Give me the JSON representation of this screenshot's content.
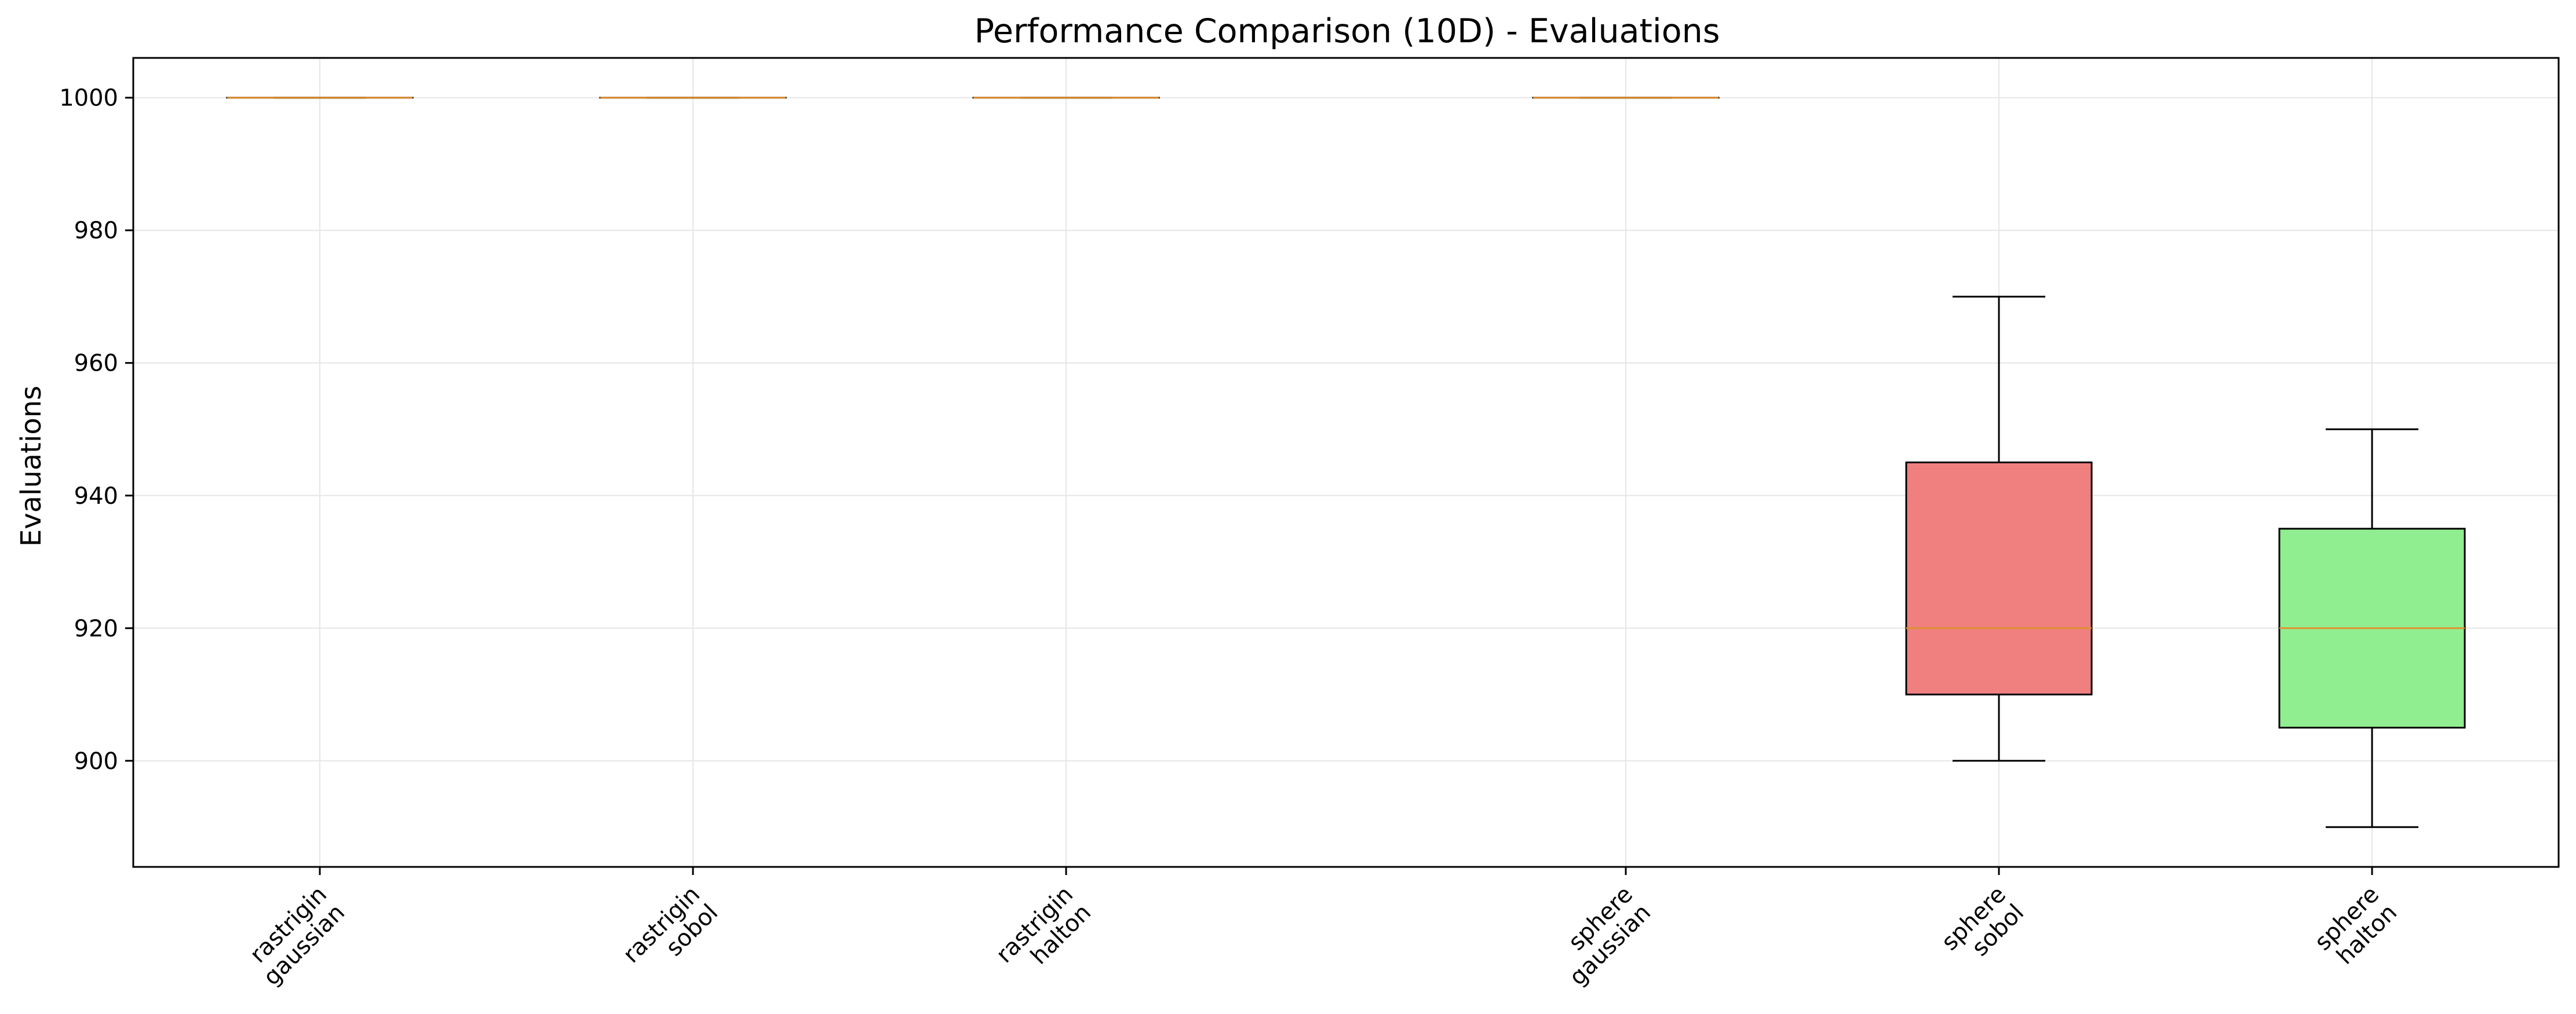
{
  "chart_data": {
    "type": "box",
    "title": "Performance Comparison (10D) - Evaluations",
    "xlabel": "",
    "ylabel": "Evaluations",
    "ylim": [
      884,
      1006
    ],
    "yticks": [
      900,
      920,
      940,
      960,
      980,
      1000
    ],
    "grid": true,
    "categories": [
      [
        "rastrigin",
        "gaussian"
      ],
      [
        "rastrigin",
        "sobol"
      ],
      [
        "rastrigin",
        "halton"
      ],
      [
        "sphere",
        "gaussian"
      ],
      [
        "sphere",
        "sobol"
      ],
      [
        "sphere",
        "halton"
      ]
    ],
    "x_positions": [
      1,
      2,
      3,
      4.5,
      5.5,
      6.5
    ],
    "xlim": [
      0.5,
      7.0
    ],
    "boxes": [
      {
        "whisker_low": 1000,
        "q1": 1000,
        "median": 1000,
        "q3": 1000,
        "whisker_high": 1000,
        "fill": "#1f77b4"
      },
      {
        "whisker_low": 1000,
        "q1": 1000,
        "median": 1000,
        "q3": 1000,
        "whisker_high": 1000,
        "fill": "#f08080"
      },
      {
        "whisker_low": 1000,
        "q1": 1000,
        "median": 1000,
        "q3": 1000,
        "whisker_high": 1000,
        "fill": "#90ee90"
      },
      {
        "whisker_low": 1000,
        "q1": 1000,
        "median": 1000,
        "q3": 1000,
        "whisker_high": 1000,
        "fill": "#1f77b4"
      },
      {
        "whisker_low": 900,
        "q1": 910,
        "median": 920,
        "q3": 945,
        "whisker_high": 970,
        "fill": "#f08080"
      },
      {
        "whisker_low": 890,
        "q1": 905,
        "median": 920,
        "q3": 935,
        "whisker_high": 950,
        "fill": "#90ee90"
      }
    ],
    "colors": {
      "median": "#e09030",
      "edge": "#000000",
      "grid": "#e6e6e6"
    }
  }
}
